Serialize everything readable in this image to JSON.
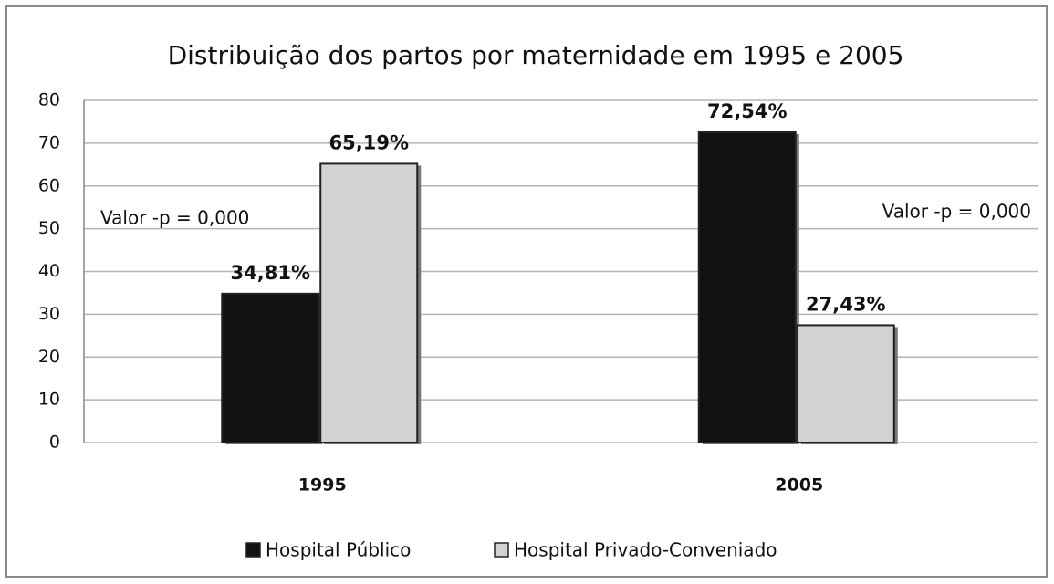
{
  "chart_data": {
    "type": "bar",
    "title": "Distribuição dos partos por maternidade em 1995 e 2005",
    "categories": [
      "1995",
      "2005"
    ],
    "series": [
      {
        "name": "Hospital Público",
        "color": "#111111",
        "values": [
          34.81,
          72.54
        ],
        "value_labels": [
          "34,81%",
          "72,54%"
        ]
      },
      {
        "name": "Hospital Privado-Conveniado",
        "color": "#d2d2d2",
        "values": [
          65.19,
          27.43
        ],
        "value_labels": [
          "65,19%",
          "27,43%"
        ]
      }
    ],
    "annotations": [
      "Valor -p = 0,000",
      "Valor -p = 0,000"
    ],
    "ylim": [
      0,
      80
    ],
    "yticks": [
      0,
      10,
      20,
      30,
      40,
      50,
      60,
      70,
      80
    ],
    "grid": true,
    "legend": "bottom"
  }
}
